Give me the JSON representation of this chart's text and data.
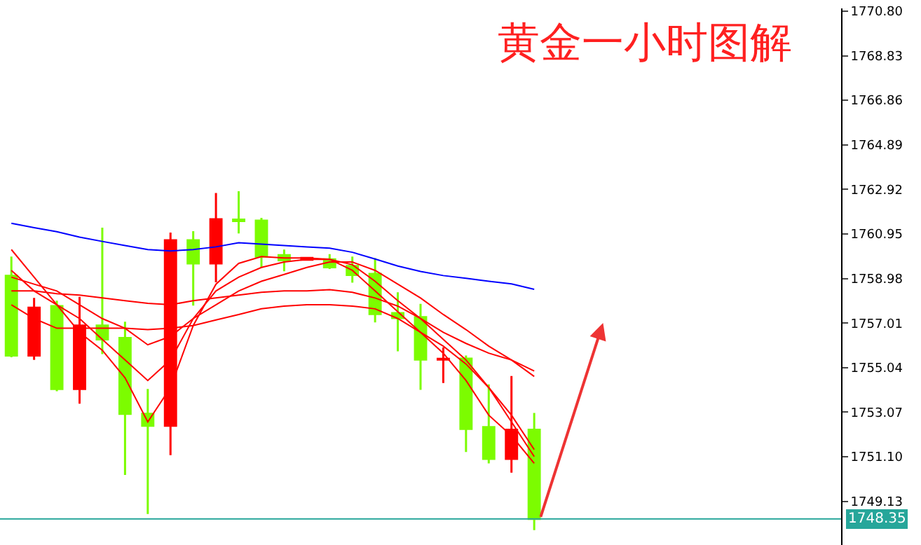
{
  "chart_data": {
    "type": "candlestick",
    "title": "黄金一小时图解",
    "categories": [
      null,
      null,
      null,
      null,
      null,
      null,
      null,
      null,
      null,
      null,
      null,
      null,
      null,
      null,
      null,
      null,
      null,
      null,
      null,
      null,
      null,
      null,
      null,
      null
    ],
    "ohlc": [
      [
        1759.1,
        1759.95,
        1755.5,
        1755.58
      ],
      [
        1755.58,
        1758.12,
        1755.38,
        1757.69
      ],
      [
        1757.76,
        1758.0,
        1754.0,
        1754.1
      ],
      [
        1754.1,
        1758.17,
        1753.45,
        1756.9
      ],
      [
        1756.9,
        1761.23,
        1755.64,
        1756.29
      ],
      [
        1756.35,
        1757.07,
        1750.3,
        1753.0
      ],
      [
        1753.0,
        1754.1,
        1748.57,
        1752.47
      ],
      [
        1752.47,
        1761.01,
        1751.17,
        1760.67
      ],
      [
        1760.67,
        1761.07,
        1757.78,
        1759.65
      ],
      [
        1759.65,
        1762.76,
        1758.81,
        1761.6
      ],
      [
        1761.58,
        1762.84,
        1760.97,
        1761.52
      ],
      [
        1761.54,
        1761.66,
        1759.45,
        1759.95
      ],
      [
        1760.01,
        1760.26,
        1759.3,
        1759.79
      ],
      [
        1759.81,
        1759.92,
        1759.78,
        1759.89
      ],
      [
        1759.83,
        1760.06,
        1759.4,
        1759.48
      ],
      [
        1759.53,
        1759.95,
        1758.8,
        1759.14
      ],
      [
        1759.18,
        1759.88,
        1757.04,
        1757.41
      ],
      [
        1757.45,
        1758.37,
        1755.76,
        1757.23
      ],
      [
        1757.27,
        1757.86,
        1754.06,
        1755.4
      ],
      [
        1755.4,
        1755.93,
        1754.36,
        1755.43
      ],
      [
        1755.44,
        1755.58,
        1751.31,
        1752.33
      ],
      [
        1752.41,
        1754.3,
        1750.81,
        1751.01
      ],
      [
        1751.01,
        1754.67,
        1750.4,
        1752.29
      ],
      [
        1752.29,
        1753.04,
        1747.86,
        1748.35
      ]
    ],
    "colors": [
      "#7cfc00",
      "#ff0000",
      "#7cfc00",
      "#ff0000",
      "#7cfc00",
      "#7cfc00",
      "#7cfc00",
      "#ff0000",
      "#7cfc00",
      "#ff0000",
      "#7cfc00",
      "#7cfc00",
      "#7cfc00",
      "#ff0000",
      "#7cfc00",
      "#7cfc00",
      "#7cfc00",
      "#7cfc00",
      "#7cfc00",
      "#ff0000",
      "#7cfc00",
      "#7cfc00",
      "#ff0000",
      "#7cfc00"
    ],
    "series": [
      {
        "type": "line",
        "color": "#0000ff",
        "values": [
          1761.42,
          1761.23,
          1761.05,
          1760.81,
          1760.62,
          1760.44,
          1760.26,
          1760.2,
          1760.26,
          1760.38,
          1760.56,
          1760.5,
          1760.44,
          1760.38,
          1760.32,
          1760.14,
          1759.84,
          1759.53,
          1759.29,
          1759.11,
          1758.99,
          1758.86,
          1758.74,
          1758.5
        ]
      },
      {
        "type": "line",
        "color": "#ff0000",
        "values": [
          1760.26,
          1759.04,
          1757.82,
          1756.6,
          1755.81,
          1754.59,
          1752.64,
          1754.16,
          1756.9,
          1758.73,
          1759.65,
          1759.95,
          1759.89,
          1759.89,
          1759.83,
          1759.34,
          1758.43,
          1757.51,
          1756.6,
          1755.68,
          1754.47,
          1752.94,
          1752.03,
          1750.81
        ]
      },
      {
        "type": "line",
        "color": "#ff0000",
        "values": [
          1759.34,
          1758.43,
          1757.82,
          1757.21,
          1756.29,
          1755.38,
          1754.47,
          1755.38,
          1757.21,
          1758.43,
          1759.04,
          1759.47,
          1759.71,
          1759.83,
          1759.83,
          1759.59,
          1758.86,
          1758.0,
          1757.21,
          1756.29,
          1755.38,
          1754.16,
          1752.94,
          1751.42
        ]
      },
      {
        "type": "line",
        "color": "#ff0000",
        "values": [
          1759.04,
          1758.73,
          1758.43,
          1757.82,
          1757.21,
          1756.78,
          1756.05,
          1756.42,
          1757.21,
          1757.82,
          1758.43,
          1758.86,
          1759.16,
          1759.47,
          1759.71,
          1759.71,
          1759.34,
          1758.73,
          1758.12,
          1757.39,
          1756.72,
          1755.99,
          1755.38,
          1754.65
        ]
      },
      {
        "type": "line",
        "color": "#ff0000",
        "values": [
          1758.43,
          1758.43,
          1758.31,
          1758.25,
          1758.12,
          1758.0,
          1757.88,
          1757.82,
          1758.0,
          1758.12,
          1758.25,
          1758.37,
          1758.43,
          1758.43,
          1758.49,
          1758.37,
          1758.12,
          1757.76,
          1757.21,
          1756.6,
          1756.11,
          1755.68,
          1755.38,
          1754.89
        ]
      },
      {
        "type": "line",
        "color": "#ff0000",
        "values": [
          1757.82,
          1757.21,
          1756.78,
          1756.78,
          1756.78,
          1756.78,
          1756.72,
          1756.78,
          1756.9,
          1757.15,
          1757.39,
          1757.64,
          1757.76,
          1757.82,
          1757.82,
          1757.76,
          1757.64,
          1757.21,
          1756.6,
          1755.99,
          1755.2,
          1754.16,
          1752.64,
          1751.11
        ]
      }
    ],
    "ylim": [
      1747.2,
      1770.92
    ],
    "yticks": [
      {
        "value": 1770.8,
        "label": "1770.80"
      },
      1768.83,
      1766.86,
      1764.89,
      1762.92,
      1760.95,
      1758.98,
      1757.01,
      1755.04,
      1753.07,
      {
        "value": 1751.1,
        "label": "1751.10"
      },
      1749.13
    ],
    "ref_lines": [
      {
        "axis": "y",
        "value": 1748.35,
        "label": "1748.35",
        "color": "#26a69a"
      }
    ],
    "tick_labels": "y",
    "marker": "none",
    "line_style": "solid"
  }
}
